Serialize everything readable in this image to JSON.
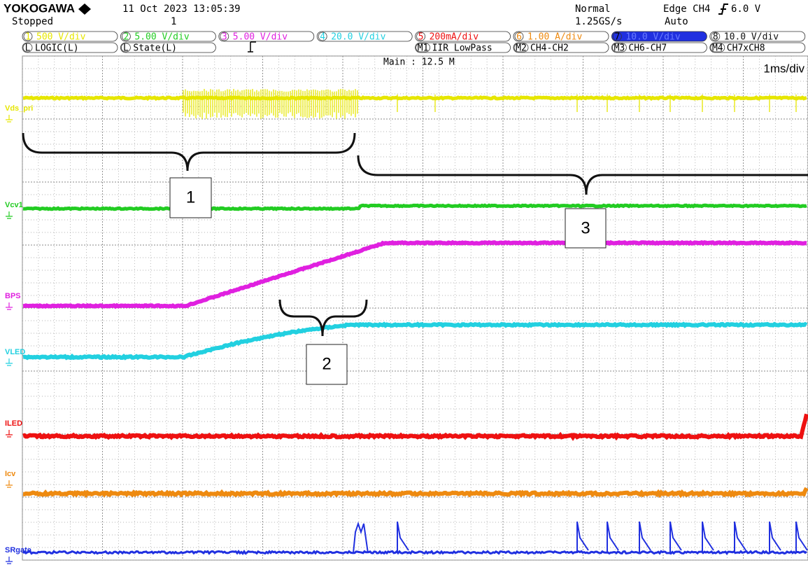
{
  "header": {
    "brand": "YOKOGAWA",
    "timestamp": "11 Oct 2023 13:05:39",
    "state": "Stopped",
    "record": "1",
    "acquisition": "Normal",
    "sample_rate": "1.25GS/s",
    "trigger_source": "Edge CH4",
    "trigger_level": "6.0 V",
    "trigger_mode": "Auto"
  },
  "channels": [
    {
      "id": "1",
      "scale": "500 V/div",
      "color": "#e6e600"
    },
    {
      "id": "2",
      "scale": "5.00 V/div",
      "color": "#22cc22"
    },
    {
      "id": "3",
      "scale": "5.00 V/div",
      "color": "#e020e0"
    },
    {
      "id": "4",
      "scale": "20.0 V/div",
      "color": "#22d0e0"
    },
    {
      "id": "5",
      "scale": "200mA/div",
      "color": "#ee1111"
    },
    {
      "id": "6",
      "scale": "1.00 A/div",
      "color": "#ee8a10"
    },
    {
      "id": "7",
      "scale": "10.0 V/div",
      "color": "#2030e0"
    },
    {
      "id": "8",
      "scale": "10.0 V/div",
      "color": "#111111"
    }
  ],
  "second_row": [
    {
      "id": "L",
      "text": "LOGIC(L)"
    },
    {
      "id": "L",
      "text": "State(L)"
    },
    {
      "id": "M1",
      "text": "IIR LowPass"
    },
    {
      "id": "M2",
      "text": "CH4-CH2"
    },
    {
      "id": "M3",
      "text": "CH6-CH7"
    },
    {
      "id": "M4",
      "text": "CH7xCH8"
    }
  ],
  "display": {
    "main": "Main : 12.5 M",
    "timebase": "1ms/div"
  },
  "traces": [
    "Vds_pri",
    "Vcv1",
    "BPS",
    "VLED",
    "ILED",
    "Icv",
    "SRgate"
  ],
  "annotations": [
    "1",
    "2",
    "3"
  ]
}
